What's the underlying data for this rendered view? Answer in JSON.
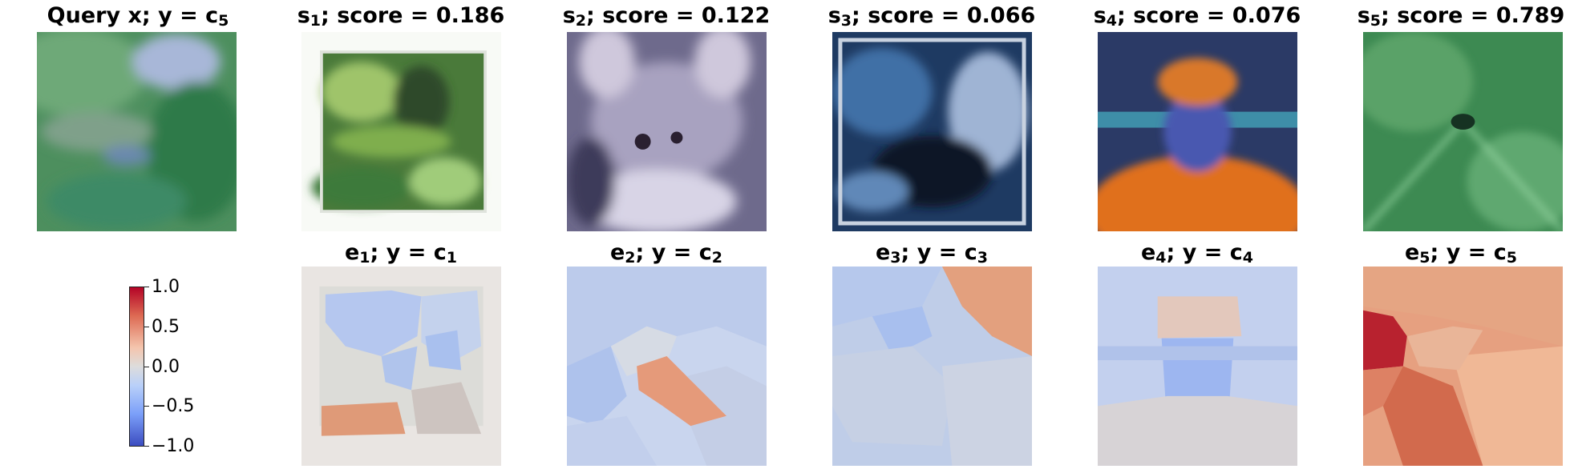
{
  "top_row": [
    {
      "prefix": "Query x; y = c",
      "sub": "5"
    },
    {
      "prefix": "s",
      "sub": "1",
      "suffix": "; score = 0.186"
    },
    {
      "prefix": "s",
      "sub": "2",
      "suffix": "; score = 0.122"
    },
    {
      "prefix": "s",
      "sub": "3",
      "suffix": "; score = 0.066"
    },
    {
      "prefix": "s",
      "sub": "4",
      "suffix": "; score = 0.076"
    },
    {
      "prefix": "s",
      "sub": "5",
      "suffix": "; score = 0.789"
    }
  ],
  "bottom_row": [
    {
      "e": "e",
      "esub": "1",
      "mid": "; y = c",
      "csub": "1"
    },
    {
      "e": "e",
      "esub": "2",
      "mid": "; y = c",
      "csub": "2"
    },
    {
      "e": "e",
      "esub": "3",
      "mid": "; y = c",
      "csub": "3"
    },
    {
      "e": "e",
      "esub": "4",
      "mid": "; y = c",
      "csub": "4"
    },
    {
      "e": "e",
      "esub": "5",
      "mid": "; y = c",
      "csub": "5"
    }
  ],
  "colorbar": {
    "colormap": "coolwarm",
    "range": [
      -1.0,
      1.0
    ],
    "ticks": [
      "1.0",
      "0.5",
      "0.0",
      "−0.5",
      "−1.0"
    ],
    "colors": {
      "high": "#b40426",
      "mid": "#dddcdc",
      "low": "#3b4cc0"
    }
  }
}
